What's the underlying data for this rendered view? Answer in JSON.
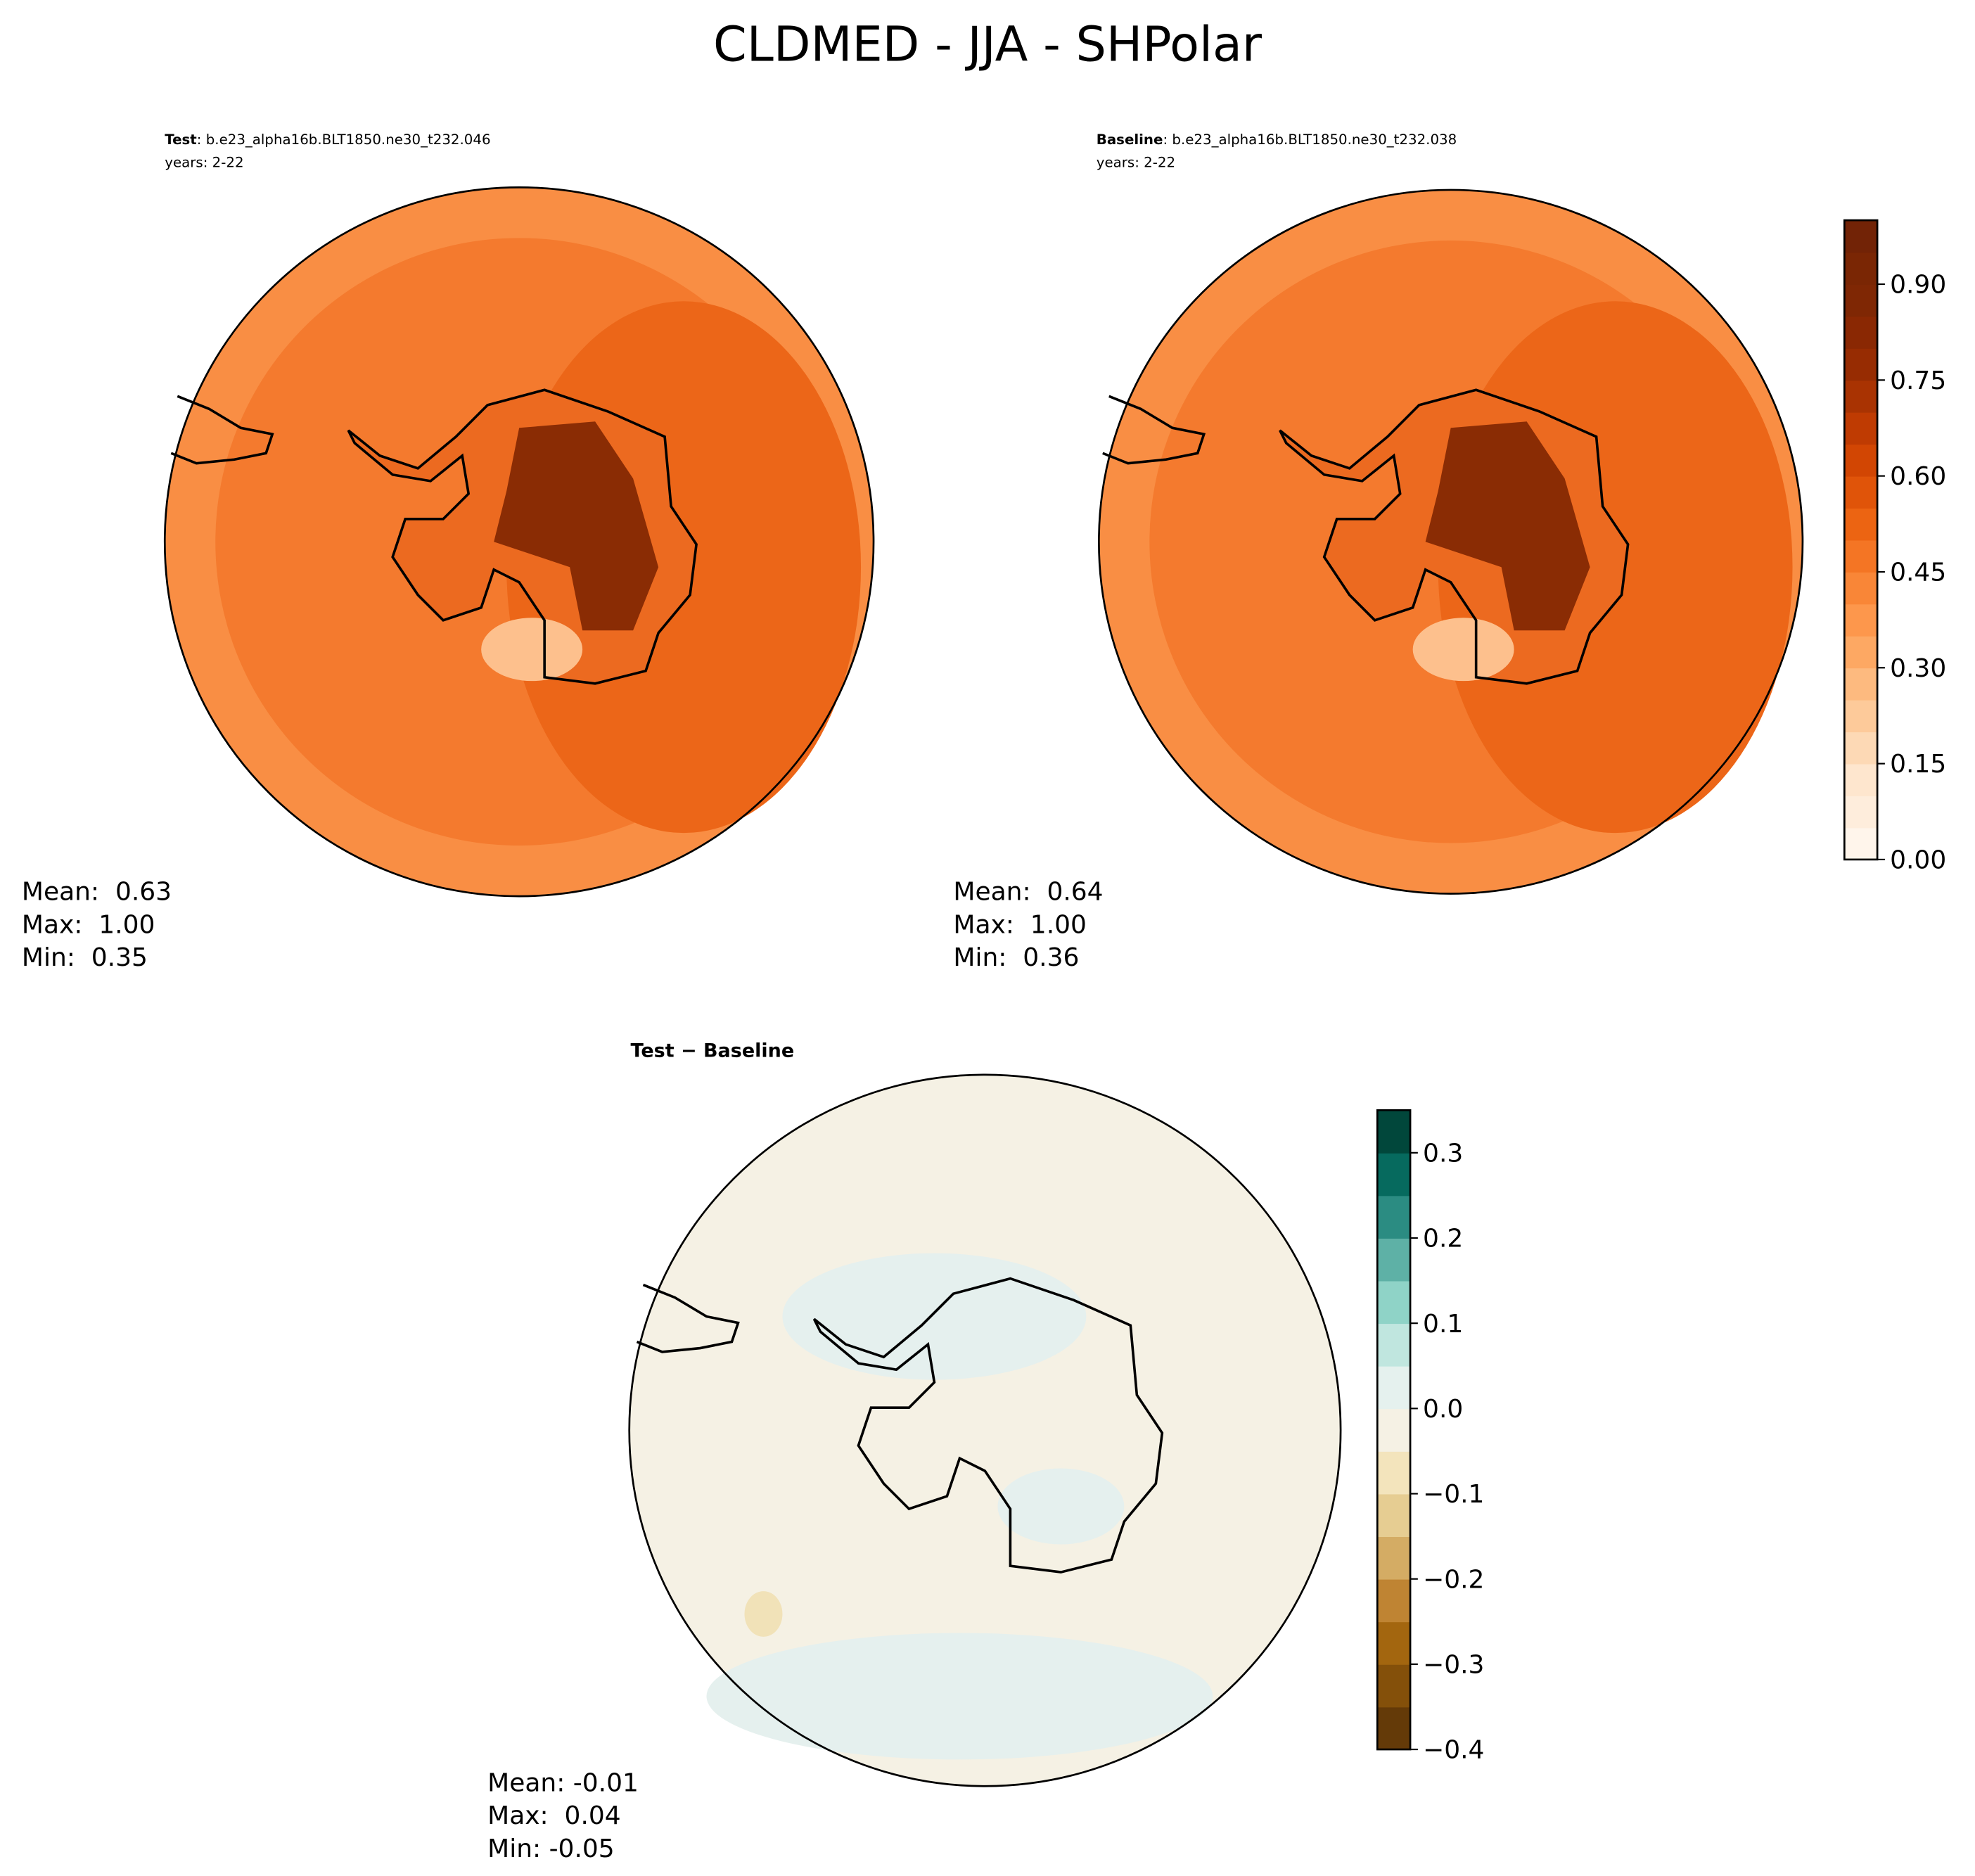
{
  "header": {
    "title": "CLDMED - JJA - SHPolar"
  },
  "panels": [
    {
      "name": "Test",
      "case": ": b.e23_alpha16b.BLT1850.ne30_t232.046",
      "years": "years: 2-22",
      "stats": [
        "Mean:  0.63",
        "Max:  1.00",
        "Min:  0.35"
      ]
    },
    {
      "name": "Baseline",
      "case": ": b.e23_alpha16b.BLT1850.ne30_t232.038",
      "years": "years: 2-22",
      "stats": [
        "Mean:  0.64",
        "Max:  1.00",
        "Min:  0.36"
      ]
    },
    {
      "name": "Test − Baseline",
      "stats": [
        "Mean: -0.01",
        "Max:  0.04",
        "Min: -0.05"
      ]
    }
  ],
  "colorbars": [
    {
      "lim": [
        0,
        1.0
      ],
      "ticks": [
        {
          "value": 0,
          "label": "0.00"
        },
        0.15,
        {
          "value": 0.3,
          "label": "0.30"
        },
        0.45,
        {
          "value": 0.6,
          "label": "0.60"
        },
        0.75,
        {
          "value": 0.9,
          "label": "0.90"
        }
      ],
      "colors": [
        "#fff5eb",
        "#feeddc",
        "#fee6ce",
        "#fdd9b5",
        "#fdca9a",
        "#fdba7f",
        "#fda863",
        "#fd974c",
        "#f98637",
        "#f47524",
        "#ec6412",
        "#e05409",
        "#d24603",
        "#bf3b02",
        "#a93302",
        "#972c02",
        "#8a2803",
        "#7f2704",
        "#7a2604",
        "#722306"
      ]
    },
    {
      "lim": [
        -0.4,
        0.35
      ],
      "ticks": [
        {
          "value": -0.4,
          "label": "−0.4"
        },
        {
          "value": -0.3,
          "label": "−0.3"
        },
        {
          "value": -0.2,
          "label": "−0.2"
        },
        {
          "value": -0.1,
          "label": "−0.1"
        },
        {
          "value": 0,
          "label": "0.0"
        },
        0.1,
        0.2,
        0.3
      ],
      "colors": [
        "#643a08",
        "#84500a",
        "#a3660f",
        "#bf8433",
        "#d4ac64",
        "#e6cd92",
        "#f3e4bc",
        "#f5f1e4",
        "#e5f1ee",
        "#c0e6df",
        "#8fd3c7",
        "#5eb1a6",
        "#2b8c82",
        "#066a5e",
        "#01473b"
      ]
    }
  ]
}
